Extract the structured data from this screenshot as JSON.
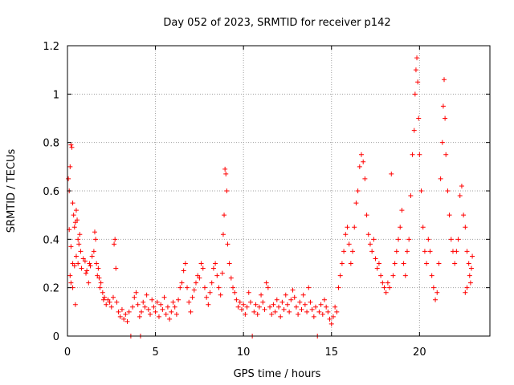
{
  "chart_data": {
    "type": "scatter",
    "title": "Day 052 of 2023, SRMTID for receiver p142",
    "xlabel": "GPS time / hours",
    "ylabel": "SRMTID / TECUs",
    "xlim": [
      0,
      24
    ],
    "ylim": [
      0,
      1.2
    ],
    "grid": true,
    "legend": "none",
    "marker": "plus",
    "color": "#ff0000",
    "x_ticks": [
      0,
      5,
      10,
      15,
      20
    ],
    "x_tick_labels": [
      "0",
      "5",
      "10",
      "15",
      "20"
    ],
    "y_ticks": [
      0,
      0.2,
      0.4,
      0.6,
      0.8,
      1.0,
      1.2
    ],
    "y_tick_labels": [
      "0",
      "0.2",
      "0.4",
      "0.6",
      "0.8",
      "1",
      "1.2"
    ],
    "series": [
      {
        "name": "SRMTID",
        "points": [
          [
            0.05,
            0.65
          ],
          [
            0.1,
            0.6
          ],
          [
            0.15,
            0.7
          ],
          [
            0.2,
            0.79
          ],
          [
            0.25,
            0.78
          ],
          [
            0.3,
            0.55
          ],
          [
            0.35,
            0.5
          ],
          [
            0.4,
            0.45
          ],
          [
            0.45,
            0.47
          ],
          [
            0.5,
            0.52
          ],
          [
            0.55,
            0.48
          ],
          [
            0.6,
            0.4
          ],
          [
            0.65,
            0.38
          ],
          [
            0.7,
            0.42
          ],
          [
            0.75,
            0.35
          ],
          [
            0.1,
            0.44
          ],
          [
            0.2,
            0.37
          ],
          [
            0.3,
            0.3
          ],
          [
            0.4,
            0.29
          ],
          [
            0.5,
            0.33
          ],
          [
            0.2,
            0.22
          ],
          [
            0.3,
            0.2
          ],
          [
            0.45,
            0.13
          ],
          [
            0.15,
            0.25
          ],
          [
            0.6,
            0.3
          ],
          [
            0.8,
            0.28
          ],
          [
            0.9,
            0.32
          ],
          [
            1.0,
            0.31
          ],
          [
            1.05,
            0.26
          ],
          [
            1.1,
            0.27
          ],
          [
            1.2,
            0.22
          ],
          [
            1.25,
            0.3
          ],
          [
            1.3,
            0.29
          ],
          [
            1.4,
            0.33
          ],
          [
            1.5,
            0.35
          ],
          [
            1.55,
            0.43
          ],
          [
            1.6,
            0.4
          ],
          [
            1.65,
            0.3
          ],
          [
            1.7,
            0.25
          ],
          [
            1.75,
            0.28
          ],
          [
            1.8,
            0.24
          ],
          [
            1.85,
            0.2
          ],
          [
            1.9,
            0.22
          ],
          [
            2.0,
            0.18
          ],
          [
            2.05,
            0.15
          ],
          [
            2.1,
            0.16
          ],
          [
            2.2,
            0.13
          ],
          [
            2.3,
            0.15
          ],
          [
            2.4,
            0.14
          ],
          [
            2.5,
            0.12
          ],
          [
            2.6,
            0.16
          ],
          [
            2.65,
            0.38
          ],
          [
            2.7,
            0.4
          ],
          [
            2.75,
            0.28
          ],
          [
            2.8,
            0.14
          ],
          [
            2.9,
            0.1
          ],
          [
            3.0,
            0.08
          ],
          [
            3.1,
            0.11
          ],
          [
            3.2,
            0.07
          ],
          [
            3.3,
            0.09
          ],
          [
            3.4,
            0.06
          ],
          [
            3.5,
            0.1
          ],
          [
            3.6,
            0.0
          ],
          [
            3.7,
            0.12
          ],
          [
            3.8,
            0.16
          ],
          [
            3.9,
            0.18
          ],
          [
            4.0,
            0.13
          ],
          [
            4.1,
            0.08
          ],
          [
            4.15,
            0.0
          ],
          [
            4.2,
            0.1
          ],
          [
            4.3,
            0.14
          ],
          [
            4.4,
            0.12
          ],
          [
            4.5,
            0.17
          ],
          [
            4.6,
            0.11
          ],
          [
            4.7,
            0.09
          ],
          [
            4.8,
            0.15
          ],
          [
            4.9,
            0.12
          ],
          [
            5.0,
            0.1
          ],
          [
            5.1,
            0.14
          ],
          [
            5.2,
            0.08
          ],
          [
            5.3,
            0.13
          ],
          [
            5.4,
            0.11
          ],
          [
            5.5,
            0.16
          ],
          [
            5.6,
            0.09
          ],
          [
            5.7,
            0.12
          ],
          [
            5.8,
            0.07
          ],
          [
            5.9,
            0.1
          ],
          [
            6.0,
            0.14
          ],
          [
            6.1,
            0.12
          ],
          [
            6.2,
            0.09
          ],
          [
            6.3,
            0.15
          ],
          [
            6.4,
            0.2
          ],
          [
            6.5,
            0.22
          ],
          [
            6.6,
            0.27
          ],
          [
            6.7,
            0.3
          ],
          [
            6.8,
            0.2
          ],
          [
            6.9,
            0.14
          ],
          [
            7.0,
            0.1
          ],
          [
            7.1,
            0.16
          ],
          [
            7.2,
            0.19
          ],
          [
            7.3,
            0.22
          ],
          [
            7.4,
            0.25
          ],
          [
            7.5,
            0.24
          ],
          [
            7.6,
            0.3
          ],
          [
            7.7,
            0.28
          ],
          [
            7.8,
            0.2
          ],
          [
            7.9,
            0.16
          ],
          [
            8.0,
            0.13
          ],
          [
            8.1,
            0.18
          ],
          [
            8.2,
            0.22
          ],
          [
            8.3,
            0.28
          ],
          [
            8.4,
            0.3
          ],
          [
            8.5,
            0.25
          ],
          [
            8.6,
            0.2
          ],
          [
            8.7,
            0.17
          ],
          [
            8.8,
            0.26
          ],
          [
            8.85,
            0.42
          ],
          [
            8.9,
            0.5
          ],
          [
            8.95,
            0.69
          ],
          [
            9.0,
            0.67
          ],
          [
            9.05,
            0.6
          ],
          [
            9.1,
            0.38
          ],
          [
            9.2,
            0.3
          ],
          [
            9.3,
            0.24
          ],
          [
            9.4,
            0.2
          ],
          [
            9.5,
            0.18
          ],
          [
            9.6,
            0.15
          ],
          [
            9.7,
            0.12
          ],
          [
            9.8,
            0.14
          ],
          [
            9.9,
            0.11
          ],
          [
            10.0,
            0.13
          ],
          [
            10.1,
            0.09
          ],
          [
            10.2,
            0.12
          ],
          [
            10.3,
            0.18
          ],
          [
            10.4,
            0.14
          ],
          [
            10.5,
            0.0
          ],
          [
            10.6,
            0.1
          ],
          [
            10.7,
            0.13
          ],
          [
            10.8,
            0.09
          ],
          [
            10.9,
            0.12
          ],
          [
            11.0,
            0.17
          ],
          [
            11.1,
            0.14
          ],
          [
            11.2,
            0.11
          ],
          [
            11.3,
            0.22
          ],
          [
            11.4,
            0.2
          ],
          [
            11.5,
            0.12
          ],
          [
            11.6,
            0.09
          ],
          [
            11.7,
            0.13
          ],
          [
            11.8,
            0.1
          ],
          [
            11.9,
            0.15
          ],
          [
            12.0,
            0.12
          ],
          [
            12.1,
            0.08
          ],
          [
            12.2,
            0.14
          ],
          [
            12.3,
            0.11
          ],
          [
            12.4,
            0.17
          ],
          [
            12.5,
            0.13
          ],
          [
            12.6,
            0.1
          ],
          [
            12.7,
            0.15
          ],
          [
            12.8,
            0.19
          ],
          [
            12.9,
            0.16
          ],
          [
            13.0,
            0.12
          ],
          [
            13.1,
            0.09
          ],
          [
            13.2,
            0.14
          ],
          [
            13.3,
            0.11
          ],
          [
            13.4,
            0.17
          ],
          [
            13.5,
            0.13
          ],
          [
            13.6,
            0.1
          ],
          [
            13.7,
            0.2
          ],
          [
            13.8,
            0.14
          ],
          [
            13.9,
            0.11
          ],
          [
            14.0,
            0.08
          ],
          [
            14.1,
            0.12
          ],
          [
            14.2,
            0.0
          ],
          [
            14.3,
            0.1
          ],
          [
            14.4,
            0.13
          ],
          [
            14.5,
            0.09
          ],
          [
            14.6,
            0.15
          ],
          [
            14.7,
            0.12
          ],
          [
            14.8,
            0.1
          ],
          [
            14.9,
            0.07
          ],
          [
            15.0,
            0.05
          ],
          [
            15.1,
            0.08
          ],
          [
            15.2,
            0.12
          ],
          [
            15.3,
            0.1
          ],
          [
            15.4,
            0.2
          ],
          [
            15.5,
            0.25
          ],
          [
            15.6,
            0.3
          ],
          [
            15.7,
            0.35
          ],
          [
            15.8,
            0.42
          ],
          [
            15.9,
            0.45
          ],
          [
            16.0,
            0.38
          ],
          [
            16.1,
            0.3
          ],
          [
            16.2,
            0.35
          ],
          [
            16.3,
            0.45
          ],
          [
            16.4,
            0.55
          ],
          [
            16.5,
            0.6
          ],
          [
            16.6,
            0.7
          ],
          [
            16.7,
            0.75
          ],
          [
            16.8,
            0.72
          ],
          [
            16.9,
            0.65
          ],
          [
            17.0,
            0.5
          ],
          [
            17.1,
            0.42
          ],
          [
            17.2,
            0.38
          ],
          [
            17.3,
            0.35
          ],
          [
            17.4,
            0.4
          ],
          [
            17.5,
            0.32
          ],
          [
            17.6,
            0.28
          ],
          [
            17.7,
            0.3
          ],
          [
            17.8,
            0.25
          ],
          [
            17.9,
            0.22
          ],
          [
            18.0,
            0.2
          ],
          [
            18.1,
            0.18
          ],
          [
            18.2,
            0.22
          ],
          [
            18.3,
            0.2
          ],
          [
            18.4,
            0.67
          ],
          [
            18.5,
            0.25
          ],
          [
            18.6,
            0.3
          ],
          [
            18.7,
            0.35
          ],
          [
            18.8,
            0.4
          ],
          [
            18.9,
            0.45
          ],
          [
            19.0,
            0.52
          ],
          [
            19.1,
            0.3
          ],
          [
            19.2,
            0.25
          ],
          [
            19.3,
            0.35
          ],
          [
            19.4,
            0.4
          ],
          [
            19.5,
            0.58
          ],
          [
            19.6,
            0.75
          ],
          [
            19.7,
            0.85
          ],
          [
            19.75,
            1.0
          ],
          [
            19.8,
            1.1
          ],
          [
            19.85,
            1.15
          ],
          [
            19.9,
            1.05
          ],
          [
            19.95,
            0.9
          ],
          [
            20.0,
            0.75
          ],
          [
            20.1,
            0.6
          ],
          [
            20.2,
            0.45
          ],
          [
            20.3,
            0.35
          ],
          [
            20.4,
            0.3
          ],
          [
            20.5,
            0.4
          ],
          [
            20.6,
            0.35
          ],
          [
            20.7,
            0.25
          ],
          [
            20.8,
            0.2
          ],
          [
            20.9,
            0.15
          ],
          [
            21.0,
            0.18
          ],
          [
            21.1,
            0.3
          ],
          [
            21.2,
            0.65
          ],
          [
            21.3,
            0.8
          ],
          [
            21.35,
            0.95
          ],
          [
            21.4,
            1.06
          ],
          [
            21.45,
            0.9
          ],
          [
            21.5,
            0.75
          ],
          [
            21.6,
            0.6
          ],
          [
            21.7,
            0.5
          ],
          [
            21.8,
            0.4
          ],
          [
            21.9,
            0.35
          ],
          [
            22.0,
            0.3
          ],
          [
            22.1,
            0.35
          ],
          [
            22.2,
            0.4
          ],
          [
            22.3,
            0.58
          ],
          [
            22.4,
            0.62
          ],
          [
            22.5,
            0.5
          ],
          [
            22.6,
            0.45
          ],
          [
            22.7,
            0.35
          ],
          [
            22.8,
            0.3
          ],
          [
            22.85,
            0.25
          ],
          [
            22.9,
            0.22
          ],
          [
            22.95,
            0.28
          ],
          [
            23.0,
            0.33
          ],
          [
            22.6,
            0.18
          ],
          [
            22.7,
            0.2
          ]
        ]
      }
    ]
  }
}
